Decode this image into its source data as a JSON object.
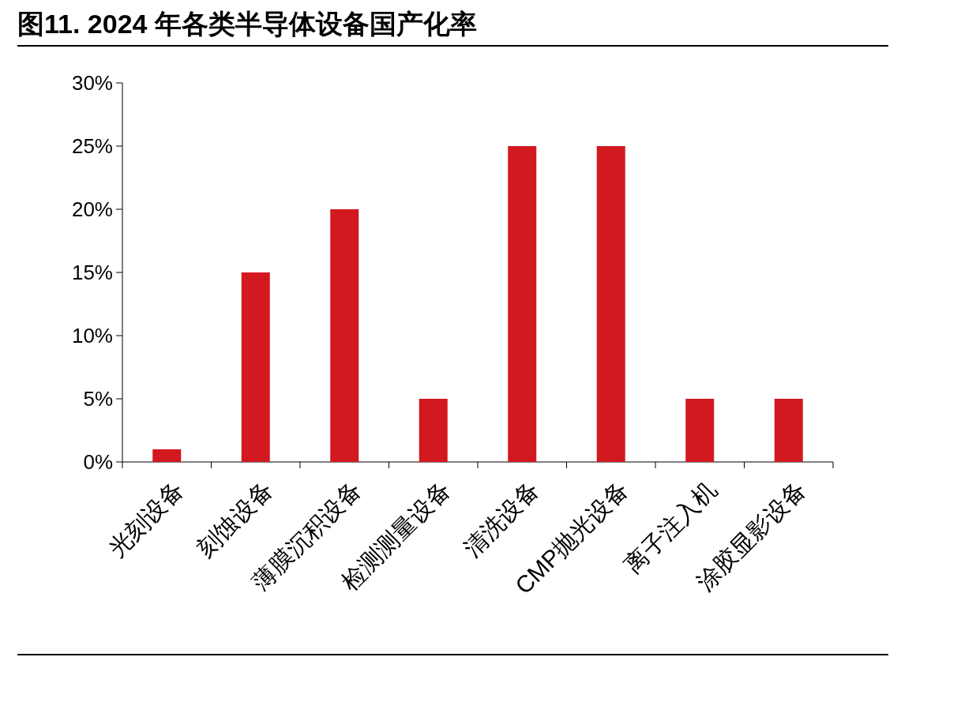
{
  "chart_data": {
    "type": "bar",
    "title": "图11. 2024 年各类半导体设备国产化率",
    "categories": [
      "光刻设备",
      "刻蚀设备",
      "薄膜沉积设备",
      "检测测量设备",
      "清洗设备",
      "CMP抛光设备",
      "离子注入机",
      "涂胶显影设备"
    ],
    "values": [
      1,
      15,
      20,
      5,
      25,
      25,
      5,
      5
    ],
    "color": "#d2191f",
    "ylim": [
      0,
      30
    ],
    "yticks": [
      {
        "value": 0,
        "label": "0%"
      },
      {
        "value": 5,
        "label": "5%"
      },
      {
        "value": 10,
        "label": "10%"
      },
      {
        "value": 15,
        "label": "15%"
      },
      {
        "value": 20,
        "label": "20%"
      },
      {
        "value": 25,
        "label": "25%"
      },
      {
        "value": 30,
        "label": "30%"
      }
    ],
    "grid": false
  }
}
